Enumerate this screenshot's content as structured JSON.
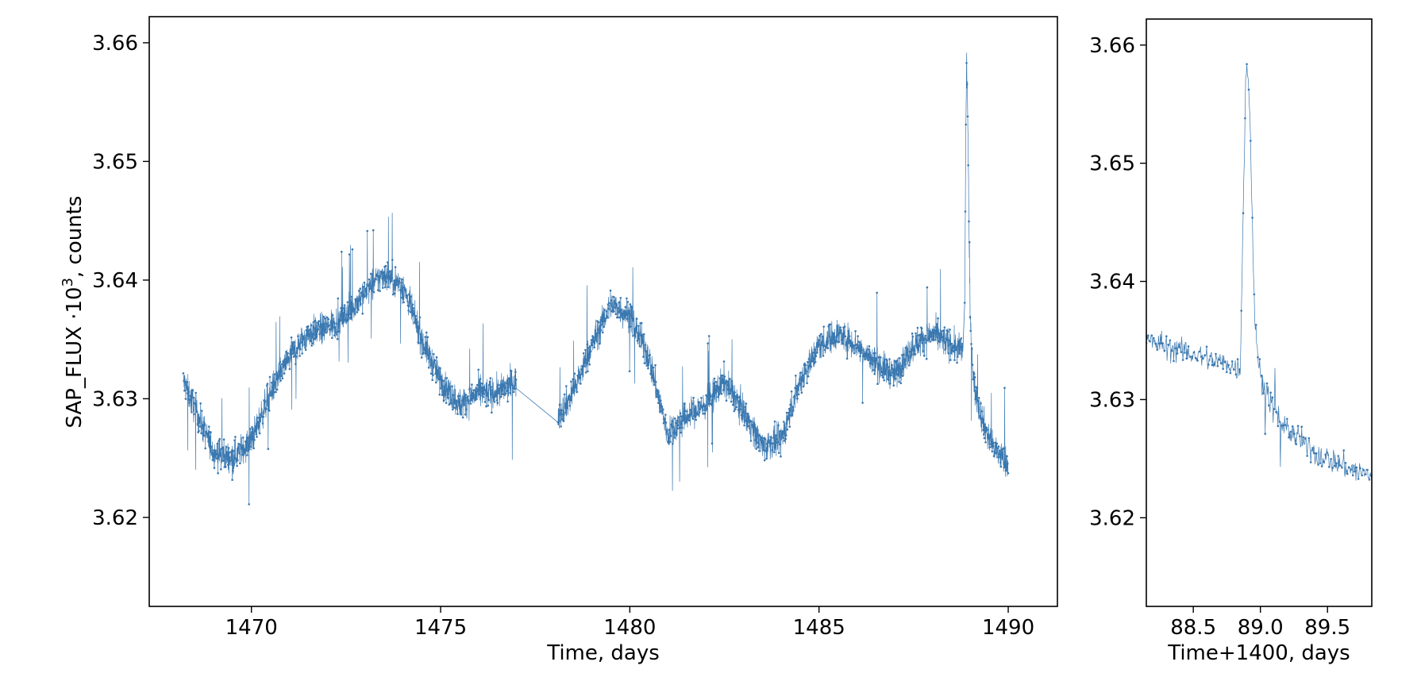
{
  "chart_data": [
    {
      "type": "line",
      "panel": "main",
      "title": "",
      "xlabel": "Time, days",
      "ylabel": "SAP_FLUX ·10³, counts",
      "ylabel_parts": {
        "base": "SAP_FLUX ·10",
        "sup": "3",
        "rest": ", counts"
      },
      "xlim": [
        1467.3,
        1491.3
      ],
      "ylim": [
        3.6125,
        3.6622
      ],
      "xticks": [
        1470,
        1475,
        1480,
        1485,
        1490
      ],
      "xtick_labels": [
        "1470",
        "1475",
        "1480",
        "1485",
        "1490"
      ],
      "yticks": [
        3.62,
        3.63,
        3.64,
        3.65,
        3.66
      ],
      "ytick_labels": [
        "3.62",
        "3.63",
        "3.64",
        "3.65",
        "3.66"
      ],
      "grid": false,
      "legend": "none",
      "series": [
        {
          "color": "#3a78b0",
          "marker": "dot",
          "noise_amplitude": 0.0022,
          "segments": [
            {
              "x": [
                1468.2,
                1468.6,
                1469.0,
                1469.5,
                1470.0,
                1470.5,
                1471.0,
                1471.5,
                1472.0,
                1472.5,
                1473.0,
                1473.5,
                1474.0,
                1474.5,
                1475.0,
                1475.5,
                1476.0,
                1476.5,
                1477.0
              ],
              "y": [
                3.6315,
                3.6285,
                3.6255,
                3.625,
                3.6265,
                3.6305,
                3.6335,
                3.6355,
                3.636,
                3.637,
                3.639,
                3.6405,
                3.6395,
                3.635,
                3.6315,
                3.6295,
                3.6305,
                3.6305,
                3.6315
              ]
            },
            {
              "x": [
                1478.1,
                1478.5,
                1479.0,
                1479.5,
                1480.0,
                1480.5,
                1481.0,
                1481.5,
                1482.0,
                1482.5,
                1483.0,
                1483.5,
                1484.0,
                1484.5,
                1485.0,
                1485.5,
                1486.0,
                1486.5,
                1487.0,
                1487.5,
                1488.0,
                1488.5,
                1488.8
              ],
              "y": [
                3.6285,
                3.6305,
                3.6345,
                3.638,
                3.637,
                3.6335,
                3.627,
                3.6285,
                3.6295,
                3.6315,
                3.629,
                3.626,
                3.6265,
                3.6315,
                3.6345,
                3.6355,
                3.6345,
                3.633,
                3.632,
                3.6345,
                3.6355,
                3.6345,
                3.634
              ]
            },
            {
              "x": [
                1488.85,
                1488.88,
                1488.9,
                1488.93,
                1488.96,
                1489.0,
                1489.1,
                1489.3,
                1489.5,
                1489.7,
                1490.0
              ],
              "y": [
                3.638,
                3.652,
                3.6585,
                3.6545,
                3.645,
                3.636,
                3.631,
                3.6285,
                3.6265,
                3.6255,
                3.6245
              ]
            }
          ]
        }
      ]
    },
    {
      "type": "line",
      "panel": "inset",
      "title": "",
      "xlabel": "Time+1400, days",
      "ylabel": "",
      "xlim": [
        88.15,
        89.83
      ],
      "ylim": [
        3.6125,
        3.6622
      ],
      "xticks": [
        88.5,
        89.0,
        89.5
      ],
      "xtick_labels": [
        "88.5",
        "89.0",
        "89.5"
      ],
      "yticks": [
        3.62,
        3.63,
        3.64,
        3.65,
        3.66
      ],
      "ytick_labels": [
        "3.62",
        "3.63",
        "3.64",
        "3.65",
        "3.66"
      ],
      "grid": false,
      "legend": "none",
      "series": [
        {
          "color": "#3a78b0",
          "marker": "dot",
          "noise_amplitude": 0.0018,
          "segments": [
            {
              "x": [
                88.15,
                88.3,
                88.45,
                88.6,
                88.75,
                88.85,
                88.87,
                88.89,
                88.9,
                88.92,
                88.94,
                88.96,
                89.0,
                89.1,
                89.2,
                89.3,
                89.4,
                89.5,
                89.6,
                89.7,
                89.83
              ],
              "y": [
                3.635,
                3.6345,
                3.634,
                3.6335,
                3.633,
                3.6325,
                3.645,
                3.657,
                3.6585,
                3.655,
                3.645,
                3.636,
                3.632,
                3.629,
                3.6275,
                3.6265,
                3.6255,
                3.625,
                3.6245,
                3.624,
                3.6235
              ]
            }
          ]
        }
      ]
    }
  ]
}
